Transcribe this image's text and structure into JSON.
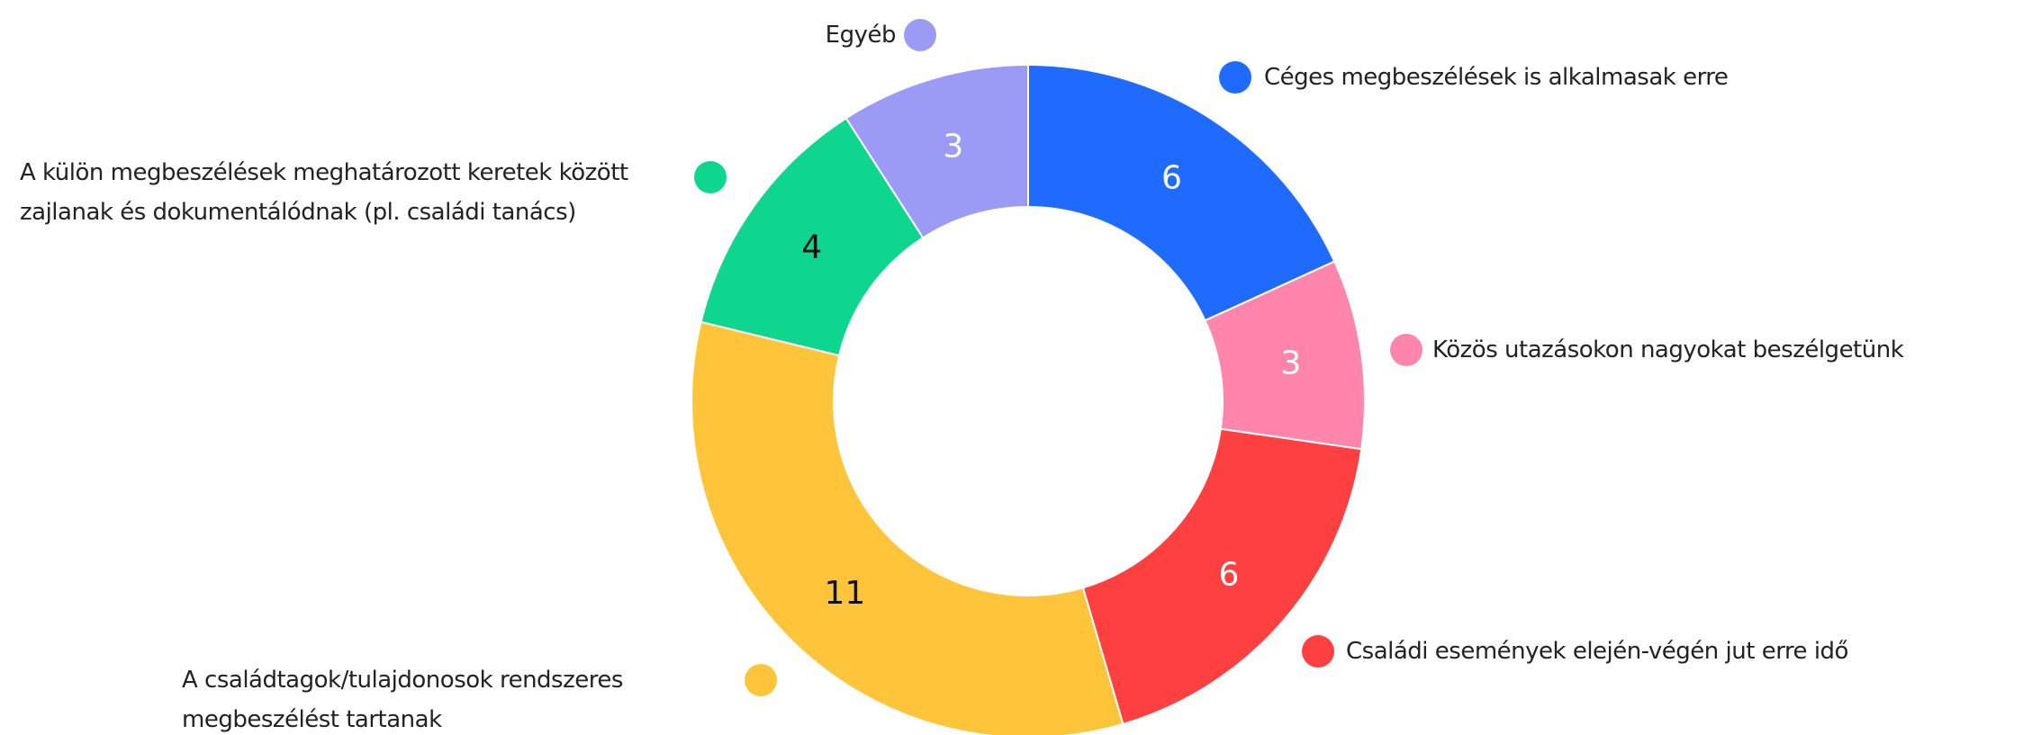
{
  "chart_data": {
    "type": "donut",
    "categories": [
      "Céges megbeszélések is alkalmasak erre",
      "Közös utazásokon nagyokat beszélgetünk",
      "Családi események elején-végén jut erre idő",
      "A családtagok/tulajdonosok rendszeres megbeszélést tartanak",
      "A külön megbeszélések meghatározott keretek között zajlanak és dokumentálódnak (pl. családi tanács)",
      "Egyéb"
    ],
    "values": [
      6,
      3,
      6,
      11,
      4,
      3
    ],
    "colors": [
      "#1f6bff",
      "#ff85ad",
      "#ff4040",
      "#fec53a",
      "#0fd68f",
      "#9b9bf5"
    ]
  }
}
